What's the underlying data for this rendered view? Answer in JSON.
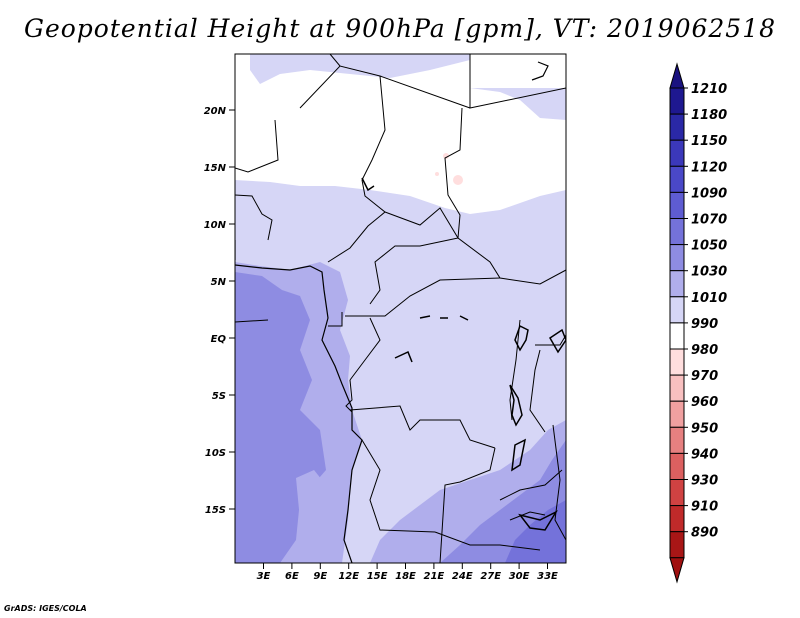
{
  "title": "Geopotential Height at 900hPa [gpm], VT: 2019062518",
  "credit": "GrADS: IGES/COLA",
  "map": {
    "lon_range": [
      0,
      35
    ],
    "lat_range": [
      -20,
      24.5
    ],
    "lat_ticks": [
      "20N",
      "15N",
      "10N",
      "5N",
      "EQ",
      "5S",
      "10S",
      "15S"
    ],
    "lon_ticks": [
      "3E",
      "6E",
      "9E",
      "12E",
      "15E",
      "18E",
      "21E",
      "24E",
      "27E",
      "30E",
      "33E"
    ]
  },
  "colorbar": {
    "levels": [
      "1210",
      "1180",
      "1150",
      "1120",
      "1090",
      "1070",
      "1050",
      "1030",
      "1010",
      "990",
      "980",
      "970",
      "960",
      "950",
      "940",
      "930",
      "910",
      "890"
    ],
    "colors": [
      "#1e1890",
      "#2a28a6",
      "#3b38ba",
      "#4a48c8",
      "#5e5cd2",
      "#7472da",
      "#8e8ce2",
      "#b0aeec",
      "#d6d6f6",
      "#ffffff",
      "#ffdede",
      "#f8c0c0",
      "#f0a0a0",
      "#e68080",
      "#dc6060",
      "#d04242",
      "#c02a2a",
      "#a81616"
    ],
    "arrow_top": "#1a1280",
    "arrow_bottom": "#a01010"
  },
  "fill_colors": {
    "lightest": "#d6d6f6",
    "light": "#b0aeec",
    "medium": "#8e8ce2",
    "dark": "#7472da"
  }
}
